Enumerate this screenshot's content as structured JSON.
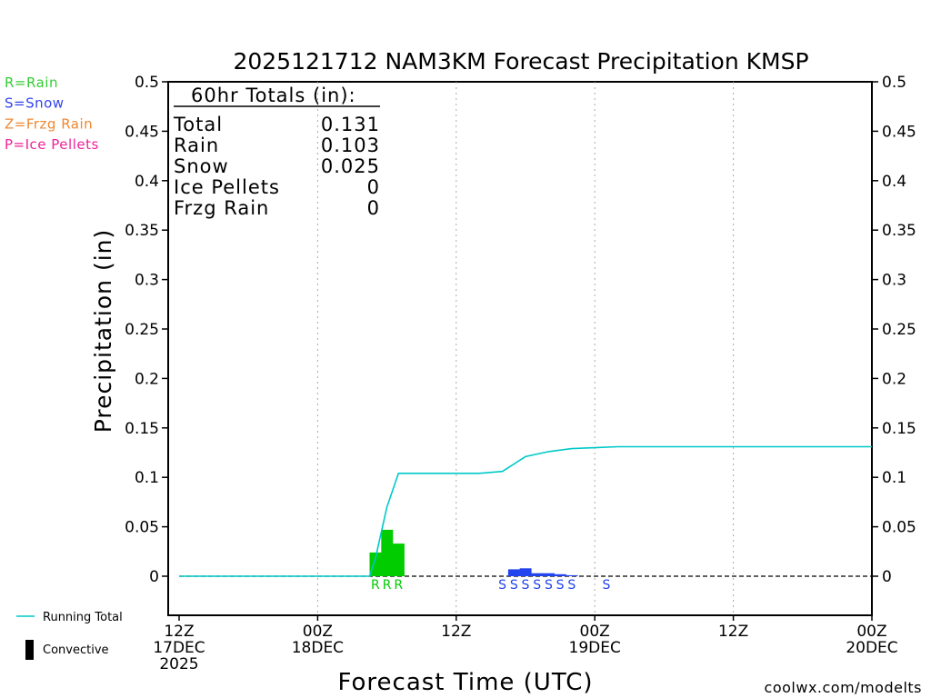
{
  "chart_data": {
    "type": "bar",
    "title": "2025121712 NAM3KM Forecast Precipitation KMSP",
    "xlabel": "Forecast Time (UTC)",
    "ylabel": "Precipitation (in)",
    "ylim": [
      -0.04,
      0.5
    ],
    "xlim_hours": [
      0,
      60
    ],
    "y_ticks": [
      0,
      0.05,
      0.1,
      0.15,
      0.2,
      0.25,
      0.3,
      0.35,
      0.4,
      0.45,
      0.5
    ],
    "y_tick_labels": [
      "0",
      "0.05",
      "0.1",
      "0.15",
      "0.2",
      "0.25",
      "0.3",
      "0.35",
      "0.4",
      "0.45",
      "0.5"
    ],
    "x_ticks": [
      {
        "hour": 0,
        "l1": "12Z",
        "l2": "17DEC",
        "l3": "2025"
      },
      {
        "hour": 12,
        "l1": "00Z",
        "l2": "18DEC",
        "l3": ""
      },
      {
        "hour": 24,
        "l1": "12Z",
        "l2": "",
        "l3": ""
      },
      {
        "hour": 36,
        "l1": "00Z",
        "l2": "19DEC",
        "l3": ""
      },
      {
        "hour": 48,
        "l1": "12Z",
        "l2": "",
        "l3": ""
      },
      {
        "hour": 60,
        "l1": "00Z",
        "l2": "20DEC",
        "l3": ""
      }
    ],
    "grid_hours": [
      12,
      24,
      36,
      48
    ],
    "rain_bars": {
      "name": "Rain",
      "color": "#00cc00",
      "hours": [
        17,
        18,
        19
      ],
      "values": [
        0.024,
        0.047,
        0.033
      ]
    },
    "snow_bars": {
      "name": "Snow",
      "color": "#2244ee",
      "hours": [
        29,
        30,
        31,
        32,
        33,
        34
      ],
      "values": [
        0.007,
        0.008,
        0.003,
        0.003,
        0.002,
        0.001
      ]
    },
    "running_total": {
      "name": "Running Total",
      "color": "#00c8c8",
      "hours": [
        0,
        16.5,
        17,
        18,
        19,
        20,
        22,
        24,
        26,
        28,
        30,
        32,
        34,
        36,
        38,
        40,
        60
      ],
      "values": [
        0,
        0,
        0.018,
        0.07,
        0.104,
        0.104,
        0.104,
        0.104,
        0.104,
        0.106,
        0.121,
        0.126,
        0.129,
        0.13,
        0.131,
        0.131,
        0.131
      ]
    },
    "ptype_markers": [
      {
        "hour": 17,
        "letter": "R",
        "color": "#00cc00"
      },
      {
        "hour": 18,
        "letter": "R",
        "color": "#00cc00"
      },
      {
        "hour": 19,
        "letter": "R",
        "color": "#00cc00"
      },
      {
        "hour": 28,
        "letter": "S",
        "color": "#2244ee"
      },
      {
        "hour": 29,
        "letter": "S",
        "color": "#2244ee"
      },
      {
        "hour": 30,
        "letter": "S",
        "color": "#2244ee"
      },
      {
        "hour": 31,
        "letter": "S",
        "color": "#2244ee"
      },
      {
        "hour": 32,
        "letter": "S",
        "color": "#2244ee"
      },
      {
        "hour": 33,
        "letter": "S",
        "color": "#2244ee"
      },
      {
        "hour": 34,
        "letter": "S",
        "color": "#2244ee"
      },
      {
        "hour": 37,
        "letter": "S",
        "color": "#2244ee"
      }
    ],
    "totals": {
      "heading": "60hr Totals (in):",
      "rows": [
        {
          "label": "Total",
          "value": "0.131"
        },
        {
          "label": "Rain",
          "value": "0.103"
        },
        {
          "label": "Snow",
          "value": "0.025"
        },
        {
          "label": "Ice Pellets",
          "value": "0"
        },
        {
          "label": "Frzg Rain",
          "value": "0"
        }
      ]
    },
    "ptype_legend": [
      {
        "text": "R=Rain",
        "color": "#33cc33"
      },
      {
        "text": "S=Snow",
        "color": "#3344ee"
      },
      {
        "text": "Z=Frzg Rain",
        "color": "#ee8833"
      },
      {
        "text": "P=Ice Pellets",
        "color": "#ee2299"
      }
    ],
    "line_legend": [
      {
        "text": "Running Total",
        "kind": "line",
        "color": "#00c8c8"
      },
      {
        "text": "Convective",
        "kind": "bar",
        "color": "#000000"
      }
    ],
    "credit": {
      "text": "coolwx.com/modelts",
      "color": "#cc2222"
    }
  }
}
